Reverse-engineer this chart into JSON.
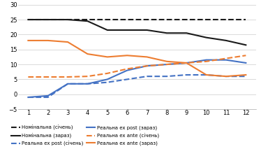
{
  "x": [
    1,
    2,
    3,
    4,
    5,
    6,
    7,
    8,
    9,
    10,
    11,
    12
  ],
  "nominal_sichen": [
    25,
    25,
    25,
    25,
    25,
    25,
    25,
    25,
    25,
    25,
    25,
    25
  ],
  "nominal_zaraz": [
    25,
    25,
    25,
    24.5,
    21.5,
    21.5,
    21.5,
    20.5,
    20.5,
    19.0,
    18.0,
    16.5
  ],
  "real_ex_post_sichen": [
    -1.0,
    -1.0,
    3.5,
    3.5,
    4.0,
    5.0,
    6.0,
    6.0,
    6.5,
    6.5,
    6.0,
    6.0
  ],
  "real_ex_post_zaraz": [
    -1.0,
    -0.5,
    3.5,
    3.5,
    5.0,
    8.0,
    9.5,
    10.0,
    10.5,
    11.5,
    11.5,
    10.5
  ],
  "real_ex_ante_sichen": [
    5.8,
    5.8,
    5.8,
    6.0,
    7.0,
    8.5,
    9.5,
    10.0,
    10.5,
    11.0,
    12.0,
    13.0
  ],
  "real_ex_ante_zaraz": [
    18.0,
    18.0,
    17.5,
    13.5,
    12.5,
    13.0,
    12.5,
    11.0,
    10.5,
    6.5,
    6.0,
    6.5
  ],
  "ylim": [
    -5,
    30
  ],
  "yticks": [
    -5,
    0,
    5,
    10,
    15,
    20,
    25,
    30
  ],
  "color_black": "#1a1a1a",
  "color_blue": "#4472C4",
  "color_orange": "#ED7D31",
  "legend_labels": [
    "Номінальна (січень)",
    "Номінальна (зараз)",
    "Реальна ex post (січень)",
    "Реальна ex post (зараз)",
    "Реальна ex ante (січень)",
    "Реальна ex ante (зараз)"
  ],
  "figsize": [
    3.74,
    2.23
  ],
  "dpi": 100
}
